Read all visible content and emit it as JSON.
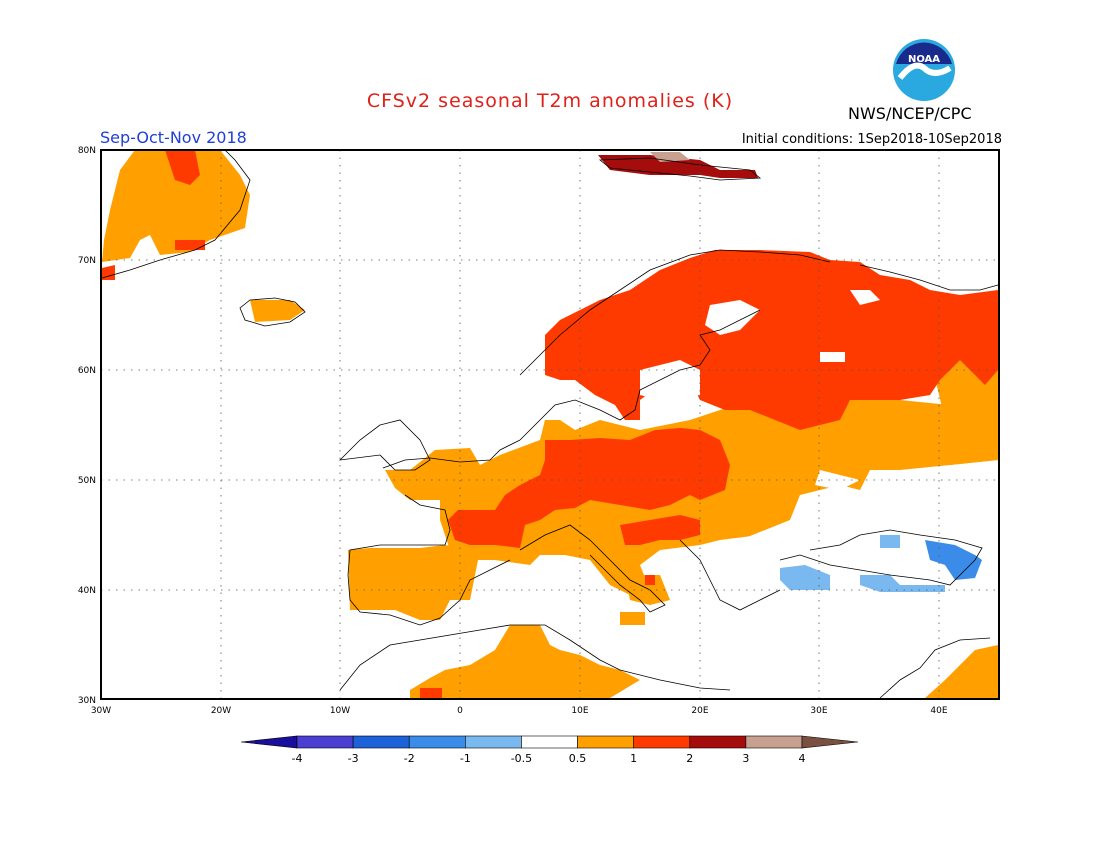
{
  "title": "CFSv2 seasonal T2m anomalies (K)",
  "season": "Sep-Oct-Nov 2018",
  "initial_conditions": "Initial conditions: 1Sep2018-10Sep2018",
  "agency": "NWS/NCEP/CPC",
  "logo_text": "NOAA",
  "map": {
    "region": "Europe",
    "lon_range": [
      -30,
      45
    ],
    "lat_range": [
      30,
      80
    ],
    "lat_ticks": [
      "30N",
      "40N",
      "50N",
      "60N",
      "70N",
      "80N"
    ],
    "lon_ticks": [
      "30W",
      "20W",
      "10W",
      "0",
      "10E",
      "20E",
      "30E",
      "40E"
    ],
    "grid": "dotted"
  },
  "colorbar": {
    "labels": [
      "-4",
      "-3",
      "-2",
      "-1",
      "-0.5",
      "0.5",
      "1",
      "2",
      "3",
      "4"
    ],
    "colors": [
      "#1a0f9c",
      "#4a3fd0",
      "#1d62d8",
      "#3a8ce8",
      "#7ab8f0",
      "#ffffff",
      "#ffa000",
      "#ff3a00",
      "#a50c0c",
      "#c8a090",
      "#7a5040"
    ]
  },
  "colors": {
    "c_0_5_1": "#ffa000",
    "c_1_2": "#ff3a00",
    "c_2_3": "#a50c0c",
    "c_3_4": "#c8a090",
    "c_neg_0_5_1": "#7ab8f0",
    "c_neg_1_2": "#3a8ce8"
  }
}
